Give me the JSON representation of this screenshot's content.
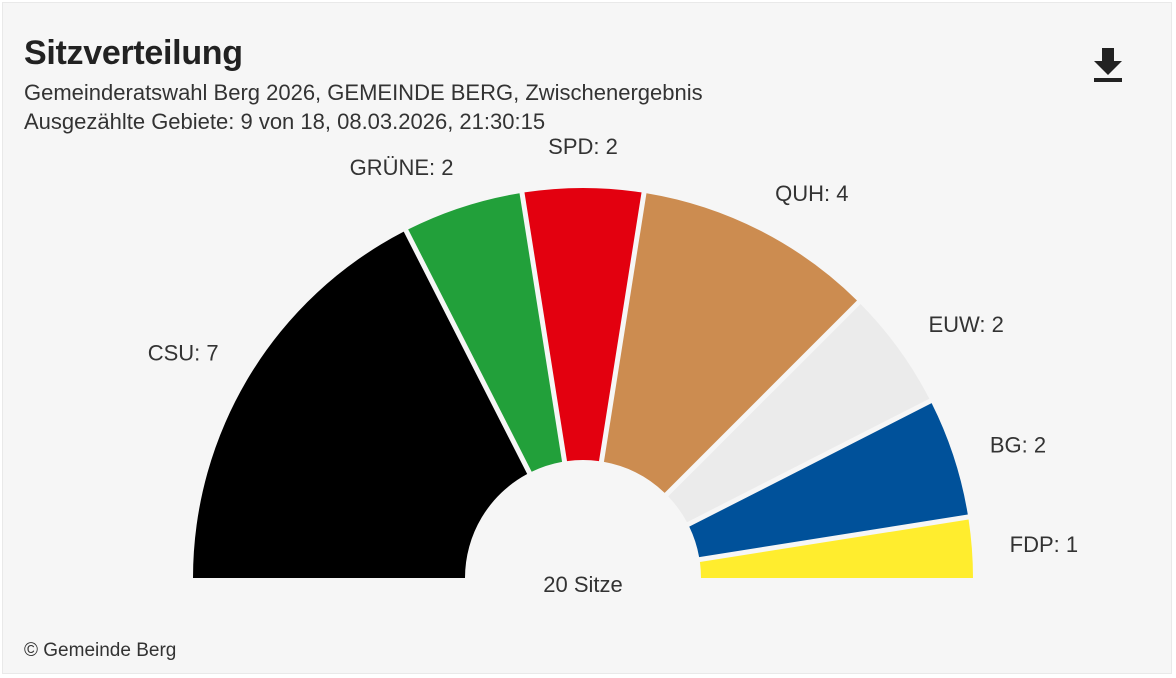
{
  "header": {
    "title": "Sitzverteilung",
    "subtitle_line1": "Gemeinderatswahl Berg 2026, GEMEINDE BERG, Zwischenergebnis",
    "subtitle_line2": "Ausgezählte Gebiete: 9 von 18, 08.03.2026, 21:30:15"
  },
  "toolbar": {
    "download_icon": "download-icon"
  },
  "chart_data": {
    "type": "pie",
    "variant": "half-donut parliament",
    "title": "Sitzverteilung",
    "total_label": "20 Sitze",
    "total": 20,
    "categories": [
      "CSU",
      "GRÜNE",
      "SPD",
      "QUH",
      "EUW",
      "BG",
      "FDP"
    ],
    "values": [
      7,
      2,
      2,
      4,
      2,
      2,
      1
    ],
    "colors": [
      "#000000",
      "#22a03a",
      "#e3000f",
      "#cc8c50",
      "#ebebeb",
      "#00519a",
      "#ffed2e"
    ],
    "labels": [
      "CSU: 7",
      "GRÜNE: 2",
      "SPD: 2",
      "QUH: 4",
      "EUW: 2",
      "BG: 2",
      "FDP: 1"
    ]
  },
  "footer": {
    "copyright": "© Gemeinde Berg"
  }
}
